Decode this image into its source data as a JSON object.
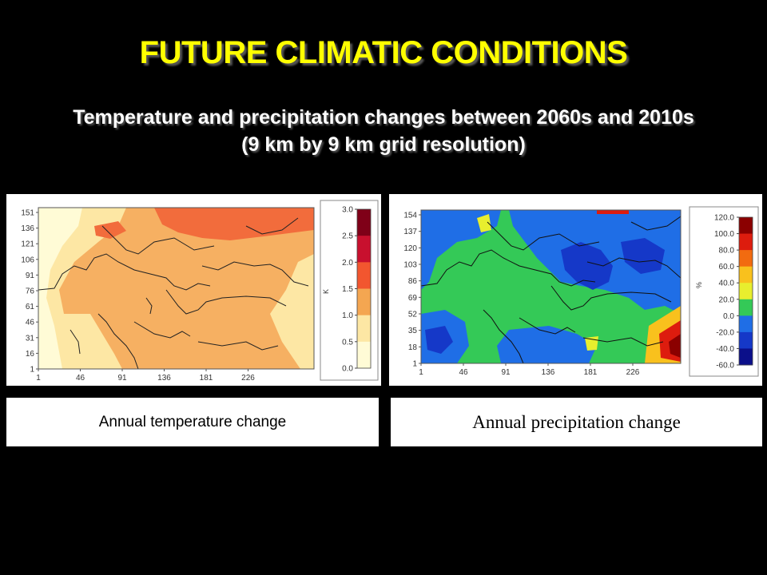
{
  "slide": {
    "title": "FUTURE CLIMATIC CONDITIONS",
    "subtitle_line1": "Temperature and precipitation changes between 2060s and 2010s",
    "subtitle_line2": "(9 km by 9 km grid resolution)"
  },
  "chart_data": [
    {
      "type": "heatmap",
      "caption": "Annual temperature change",
      "x_ticks": [
        "1",
        "46",
        "91",
        "136",
        "181",
        "226"
      ],
      "y_ticks": [
        "151",
        "136",
        "121",
        "106",
        "91",
        "76",
        "61",
        "46",
        "31",
        "16",
        "1"
      ],
      "colorbar": {
        "unit": "K",
        "tick_labels": [
          "3.0",
          "2.5",
          "2.0",
          "1.5",
          "1.0",
          "0.5",
          "0.0"
        ],
        "colors": [
          "#7f0018",
          "#c8102e",
          "#f2562f",
          "#f4a651",
          "#fde7a4",
          "#fffbd6"
        ]
      }
    },
    {
      "type": "heatmap",
      "caption": "Annual precipitation change",
      "x_ticks": [
        "1",
        "46",
        "91",
        "136",
        "181",
        "226"
      ],
      "y_ticks": [
        "154",
        "137",
        "120",
        "103",
        "86",
        "69",
        "52",
        "35",
        "18",
        "1"
      ],
      "colorbar": {
        "unit": "%",
        "tick_labels": [
          "120.0",
          "100.0",
          "80.0",
          "60.0",
          "40.0",
          "20.0",
          "0.0",
          "-20.0",
          "-40.0",
          "-60.0"
        ],
        "colors": [
          "#8b0000",
          "#dd1c0e",
          "#f26b10",
          "#f9c11d",
          "#e8ee2e",
          "#34c957",
          "#1f6ee6",
          "#1538c8",
          "#0b0f8a"
        ]
      }
    }
  ]
}
